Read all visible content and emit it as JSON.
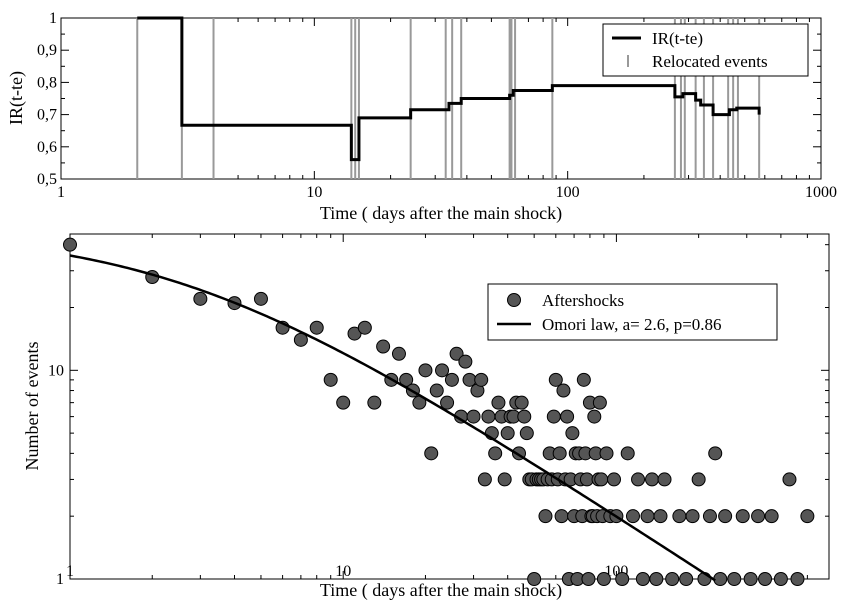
{
  "chart_data": [
    {
      "type": "line",
      "xscale": "log",
      "xlim": [
        1,
        1000
      ],
      "ylim": [
        0.5,
        1.0
      ],
      "xlabel": "Time ( days after  the main shock)",
      "ylabel": "IR(t-te)",
      "xticks": [
        "1",
        "10",
        "100",
        "1000"
      ],
      "yticks": [
        "0,5",
        "0,6",
        "0,7",
        "0,8",
        "0,9",
        "1"
      ],
      "legend_position": "top-right",
      "series": [
        {
          "name": "IR(t-te)",
          "color": "#000000",
          "step_points": [
            [
              2,
              1.0
            ],
            [
              3,
              1.0
            ],
            [
              3,
              0.667
            ],
            [
              14,
              0.667
            ],
            [
              14,
              0.56
            ],
            [
              15,
              0.56
            ],
            [
              15,
              0.69
            ],
            [
              24,
              0.69
            ],
            [
              24,
              0.715
            ],
            [
              34,
              0.715
            ],
            [
              34,
              0.735
            ],
            [
              38,
              0.735
            ],
            [
              38,
              0.75
            ],
            [
              59,
              0.75
            ],
            [
              59,
              0.76
            ],
            [
              61,
              0.76
            ],
            [
              61,
              0.775
            ],
            [
              87,
              0.775
            ],
            [
              87,
              0.79
            ],
            [
              265,
              0.79
            ],
            [
              265,
              0.755
            ],
            [
              285,
              0.755
            ],
            [
              285,
              0.765
            ],
            [
              320,
              0.765
            ],
            [
              320,
              0.745
            ],
            [
              335,
              0.745
            ],
            [
              335,
              0.73
            ],
            [
              375,
              0.73
            ],
            [
              375,
              0.7
            ],
            [
              435,
              0.7
            ],
            [
              435,
              0.715
            ],
            [
              465,
              0.715
            ],
            [
              465,
              0.72
            ],
            [
              570,
              0.72
            ],
            [
              570,
              0.7
            ]
          ]
        },
        {
          "name": "Relocated events",
          "color": "#999999",
          "x": [
            2,
            3,
            4,
            14,
            14.5,
            15,
            24,
            33,
            35,
            38,
            59,
            60,
            62,
            87,
            265,
            280,
            290,
            320,
            345,
            375,
            430,
            450,
            470,
            570
          ]
        }
      ]
    },
    {
      "type": "scatter",
      "xscale": "log",
      "yscale": "log",
      "xlim": [
        1,
        600
      ],
      "ylim": [
        1,
        45
      ],
      "xlabel": "Time ( days after  the main shock)",
      "ylabel": "Number of events",
      "xticks": [
        "1",
        "10",
        "100"
      ],
      "yticks": [
        "1",
        "10"
      ],
      "legend_position": "top-right",
      "series": [
        {
          "name": "Aftershocks",
          "color": "#555555",
          "points": [
            [
              1,
              40
            ],
            [
              2,
              28
            ],
            [
              3,
              22
            ],
            [
              4,
              21
            ],
            [
              5,
              22
            ],
            [
              6,
              16
            ],
            [
              7,
              14
            ],
            [
              8,
              16
            ],
            [
              9,
              9
            ],
            [
              10,
              7
            ],
            [
              11,
              15
            ],
            [
              12,
              16
            ],
            [
              13,
              7
            ],
            [
              14,
              13
            ],
            [
              15,
              9
            ],
            [
              16,
              12
            ],
            [
              17,
              9
            ],
            [
              18,
              8
            ],
            [
              19,
              7
            ],
            [
              20,
              10
            ],
            [
              21,
              4
            ],
            [
              22,
              8
            ],
            [
              23,
              10
            ],
            [
              24,
              7
            ],
            [
              25,
              9
            ],
            [
              26,
              12
            ],
            [
              27,
              6
            ],
            [
              28,
              11
            ],
            [
              29,
              9
            ],
            [
              30,
              6
            ],
            [
              31,
              8
            ],
            [
              32,
              9
            ],
            [
              33,
              3
            ],
            [
              34,
              6
            ],
            [
              35,
              5
            ],
            [
              36,
              4
            ],
            [
              37,
              7
            ],
            [
              38,
              6
            ],
            [
              39,
              3
            ],
            [
              40,
              5
            ],
            [
              41,
              6
            ],
            [
              42,
              6
            ],
            [
              43,
              7
            ],
            [
              44,
              4
            ],
            [
              45,
              7
            ],
            [
              46,
              6
            ],
            [
              47,
              5
            ],
            [
              48,
              3
            ],
            [
              49,
              3
            ],
            [
              50,
              1
            ],
            [
              51,
              3
            ],
            [
              52,
              3
            ],
            [
              53,
              3
            ],
            [
              54,
              3
            ],
            [
              55,
              2
            ],
            [
              56,
              3
            ],
            [
              57,
              4
            ],
            [
              58,
              3
            ],
            [
              59,
              6
            ],
            [
              60,
              9
            ],
            [
              61,
              3
            ],
            [
              62,
              4
            ],
            [
              63,
              2
            ],
            [
              64,
              8
            ],
            [
              65,
              3
            ],
            [
              66,
              6
            ],
            [
              67,
              1
            ],
            [
              68,
              3
            ],
            [
              69,
              5
            ],
            [
              70,
              2
            ],
            [
              71,
              4
            ],
            [
              72,
              1
            ],
            [
              73,
              4
            ],
            [
              74,
              3
            ],
            [
              75,
              2
            ],
            [
              76,
              9
            ],
            [
              77,
              4
            ],
            [
              78,
              3
            ],
            [
              79,
              1
            ],
            [
              80,
              7
            ],
            [
              81,
              2
            ],
            [
              82,
              2
            ],
            [
              83,
              6
            ],
            [
              84,
              4
            ],
            [
              85,
              2
            ],
            [
              86,
              3
            ],
            [
              87,
              7
            ],
            [
              88,
              3
            ],
            [
              89,
              2
            ],
            [
              90,
              1
            ],
            [
              92,
              4
            ],
            [
              95,
              2
            ],
            [
              98,
              3
            ],
            [
              100,
              2
            ],
            [
              105,
              1
            ],
            [
              110,
              4
            ],
            [
              115,
              2
            ],
            [
              120,
              3
            ],
            [
              125,
              1
            ],
            [
              130,
              2
            ],
            [
              135,
              3
            ],
            [
              140,
              1
            ],
            [
              145,
              2
            ],
            [
              150,
              3
            ],
            [
              160,
              1
            ],
            [
              170,
              2
            ],
            [
              180,
              1
            ],
            [
              190,
              2
            ],
            [
              200,
              3
            ],
            [
              210,
              1
            ],
            [
              220,
              2
            ],
            [
              230,
              4
            ],
            [
              240,
              1
            ],
            [
              250,
              2
            ],
            [
              270,
              1
            ],
            [
              290,
              2
            ],
            [
              310,
              1
            ],
            [
              330,
              2
            ],
            [
              350,
              1
            ],
            [
              370,
              2
            ],
            [
              400,
              1
            ],
            [
              430,
              3
            ],
            [
              460,
              1
            ],
            [
              500,
              2
            ]
          ]
        },
        {
          "name": "Omori law, a= 2.6, p=0.86",
          "color": "#000000",
          "function": "K/(t+c)^p",
          "params": {
            "K": 106.8,
            "c": 2.6,
            "p": 0.86
          },
          "x_range": [
            1,
            230
          ]
        }
      ]
    }
  ]
}
